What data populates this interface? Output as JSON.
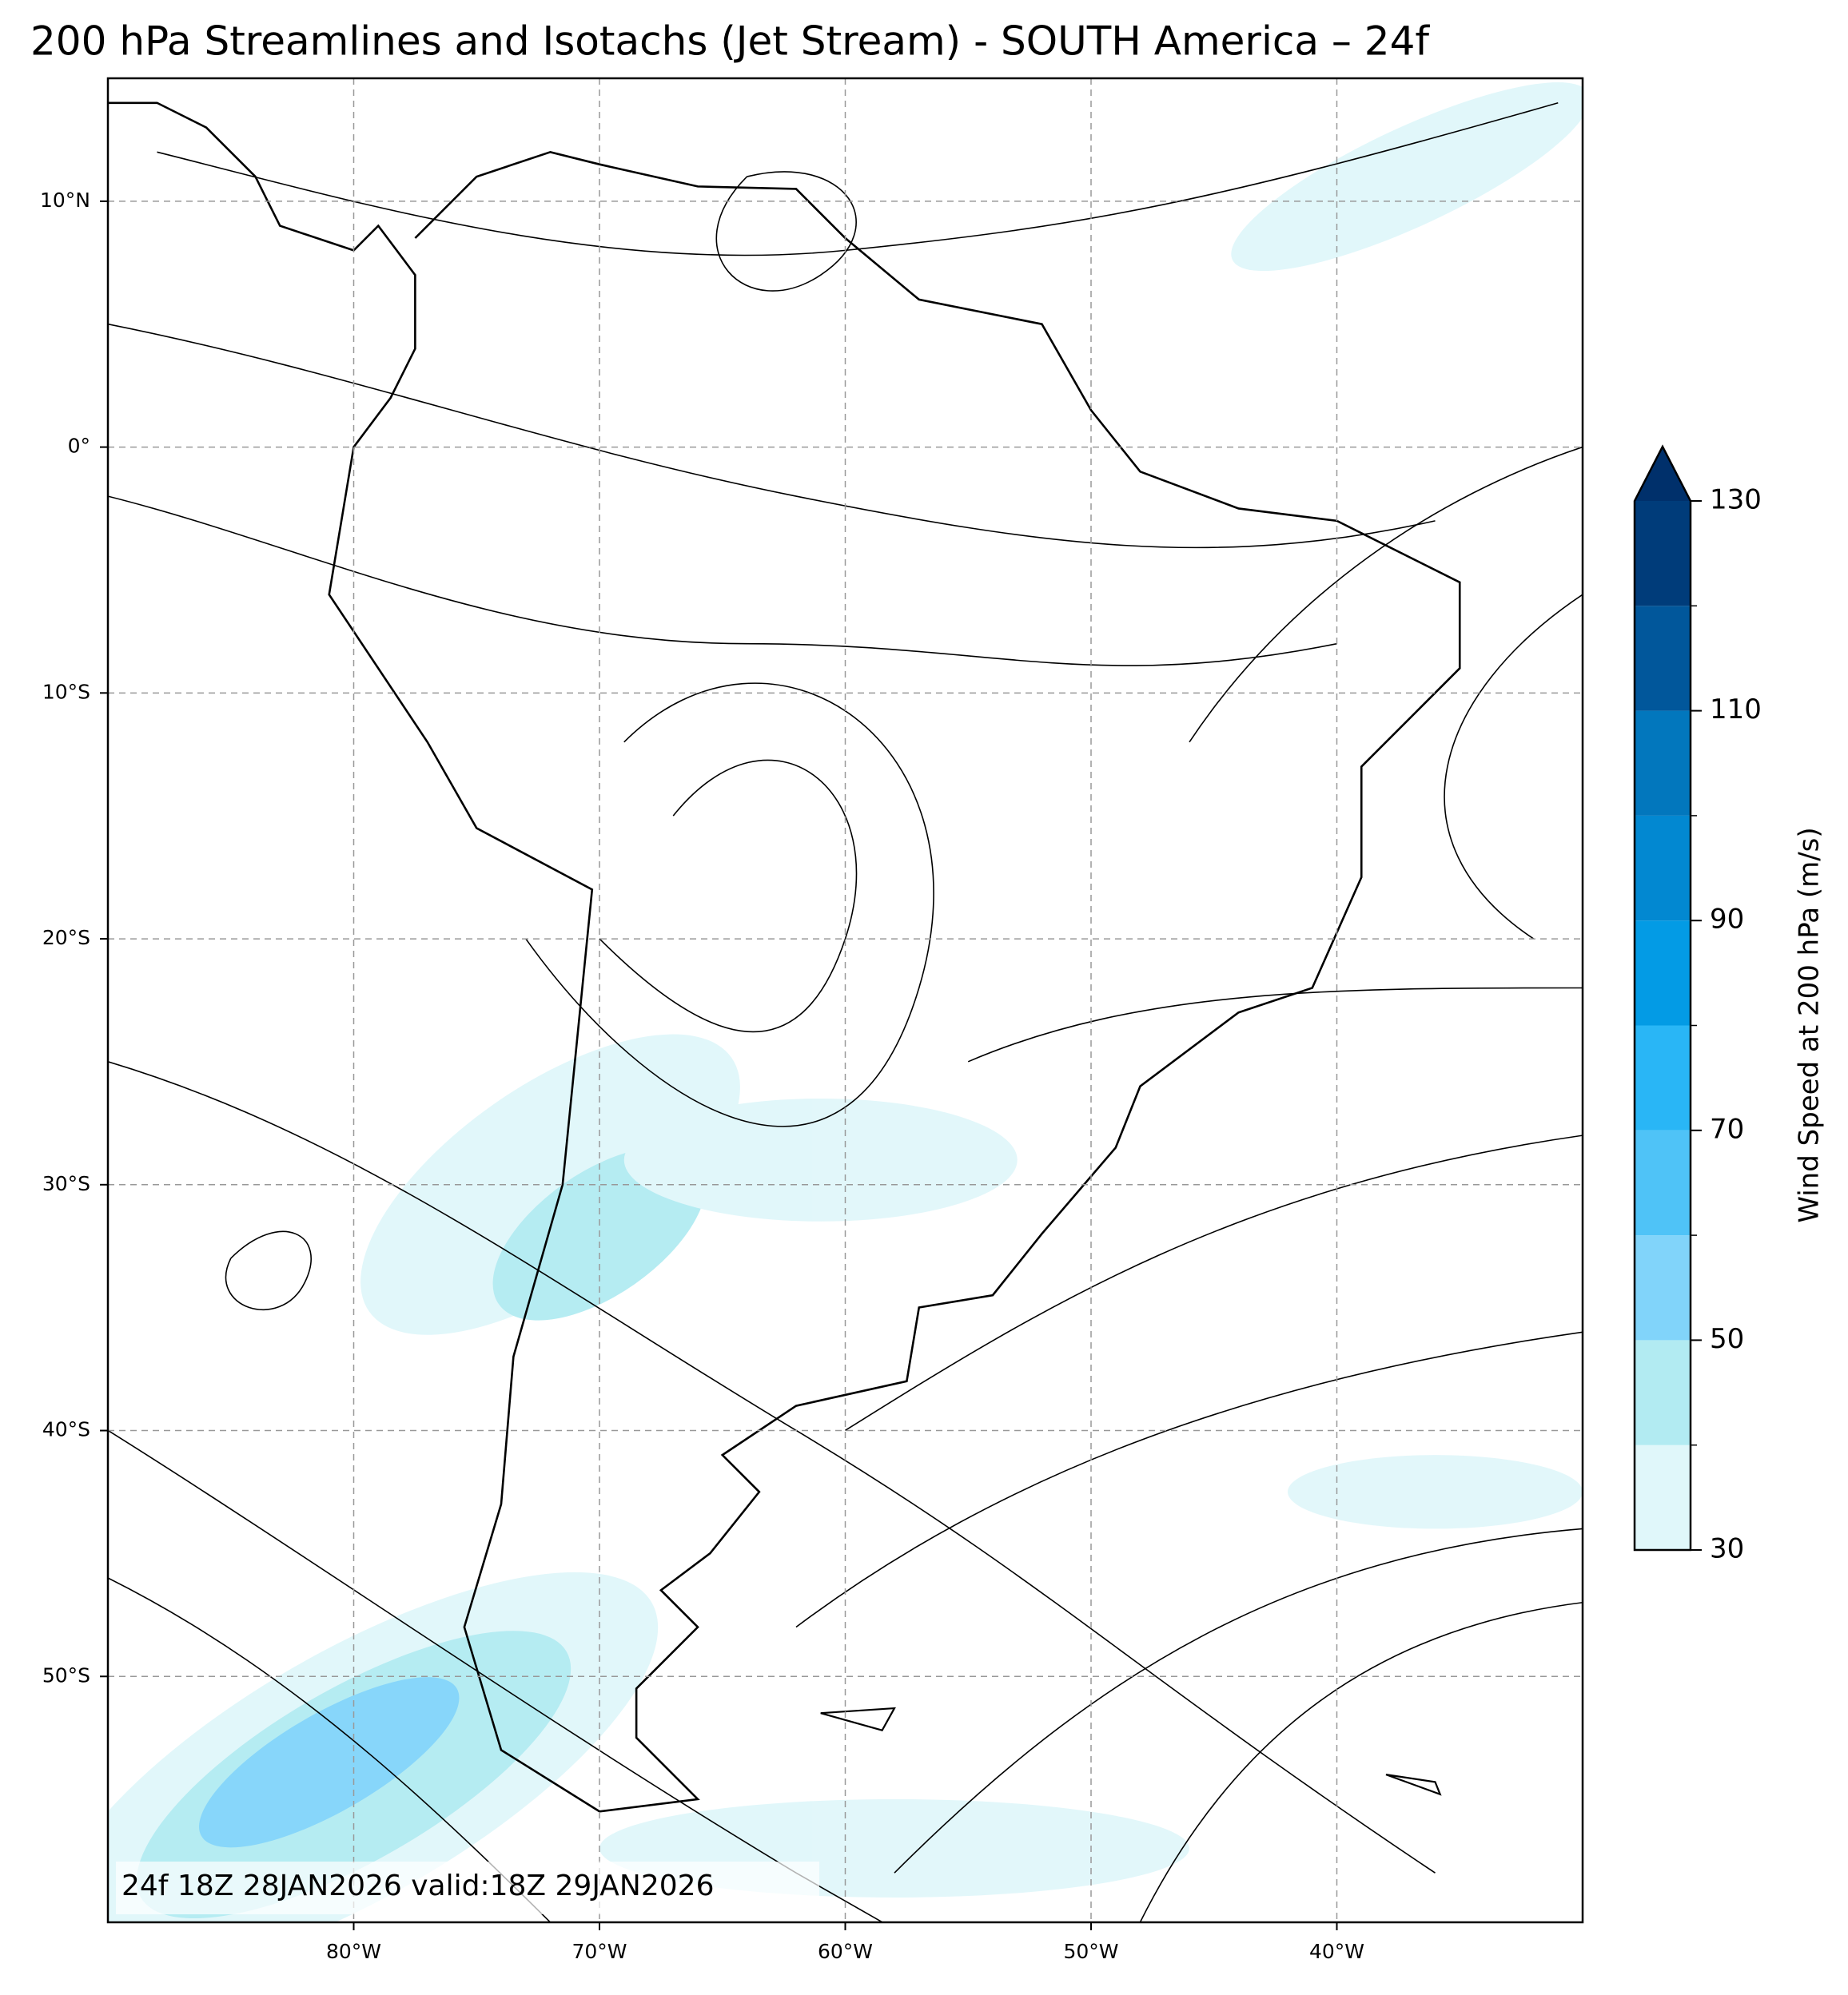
{
  "title": "200 hPa Streamlines and Isotachs (Jet Stream) - SOUTH America – 24f",
  "annotation": "24f 18Z 28JAN2026 valid:18Z 29JAN2026",
  "map": {
    "lonlim": [
      -90,
      -30
    ],
    "latlim": [
      -60,
      15
    ],
    "grid": true,
    "lonticks": [
      {
        "value": -80,
        "label": "80°W"
      },
      {
        "value": -70,
        "label": "70°W"
      },
      {
        "value": -60,
        "label": "60°W"
      },
      {
        "value": -50,
        "label": "50°W"
      },
      {
        "value": -40,
        "label": "40°W"
      }
    ],
    "latticks": [
      {
        "value": 10,
        "label": "10°N"
      },
      {
        "value": 0,
        "label": "0°"
      },
      {
        "value": -10,
        "label": "10°S"
      },
      {
        "value": -20,
        "label": "20°S"
      },
      {
        "value": -30,
        "label": "30°S"
      },
      {
        "value": -40,
        "label": "40°S"
      },
      {
        "value": -50,
        "label": "50°S"
      }
    ]
  },
  "colorbar": {
    "label": "Wind Speed at 200 hPa (m/s)",
    "levels": [
      30,
      40,
      50,
      60,
      70,
      80,
      90,
      100,
      110,
      120,
      130
    ],
    "colors": [
      "#e0f7fa",
      "#b2ebf2",
      "#81d4fa",
      "#4fc3f7",
      "#29b6f6",
      "#039be5",
      "#0288d1",
      "#0277bd",
      "#01579b",
      "#003c7a"
    ],
    "extend_color": "#00306b",
    "ticks": [
      30,
      50,
      70,
      90,
      110,
      130
    ]
  }
}
